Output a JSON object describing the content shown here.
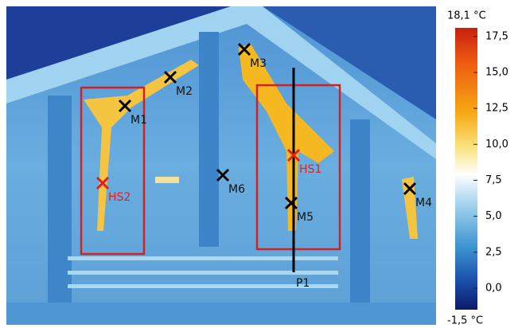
{
  "image": {
    "markers": [
      {
        "label": "M1"
      },
      {
        "label": "M2"
      },
      {
        "label": "M3"
      },
      {
        "label": "M4"
      },
      {
        "label": "M5"
      },
      {
        "label": "M6"
      },
      {
        "label": "HS1"
      },
      {
        "label": "HS2"
      }
    ],
    "profile_line": {
      "label": "P1"
    }
  },
  "scale": {
    "max_label": "18,1 °C",
    "min_label": "-1,5 °C",
    "lim": [
      -1.5,
      18.1
    ],
    "ticks": [
      {
        "value": 17.5,
        "label": "17,5"
      },
      {
        "value": 15,
        "label": "15,0"
      },
      {
        "value": 12.5,
        "label": "12,5"
      },
      {
        "value": 10,
        "label": "10,0"
      },
      {
        "value": 7.5,
        "label": "7,5"
      },
      {
        "value": 5,
        "label": "5,0"
      },
      {
        "value": 2.5,
        "label": "2,5"
      },
      {
        "value": 0,
        "label": "0,0"
      }
    ]
  }
}
